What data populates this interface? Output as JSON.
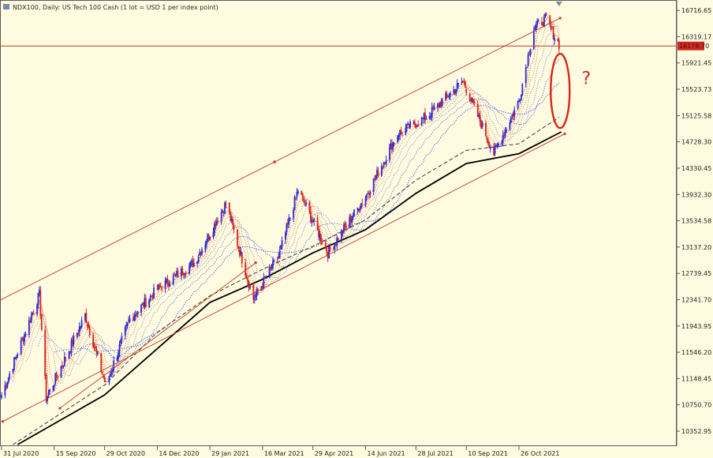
{
  "window": {
    "title": "NDX100, Daily: US Tech 100 Cash (1 lot = USD 1 per index point)",
    "annotation_text": "?"
  },
  "colors": {
    "background": "#fefbe0",
    "bull_candle": "#2b2bd9",
    "bear_candle": "#d9261c",
    "horizontal_line": "#c0392b",
    "price_tag": "#d9261c",
    "channel": "#c0392b",
    "ma_long": "#000000",
    "annotation": "#d9261c"
  },
  "chart_data": {
    "type": "candlestick",
    "symbol": "NDX100",
    "timeframe": "Daily",
    "x_tick_labels": [
      "31 Jul 2020",
      "15 Sep 2020",
      "29 Oct 2020",
      "14 Dec 2020",
      "29 Jan 2021",
      "16 Mar 2021",
      "29 Apr 2021",
      "14 Jun 2021",
      "28 Jul 2021",
      "10 Sep 2021",
      "26 Oct 2021"
    ],
    "x_tick_dates": [
      "2020-07-31",
      "2020-09-15",
      "2020-10-29",
      "2020-12-14",
      "2021-01-29",
      "2021-03-16",
      "2021-04-29",
      "2021-06-14",
      "2021-07-28",
      "2021-09-10",
      "2021-10-26"
    ],
    "y_tick_labels": [
      "16716.65",
      "16319.17",
      "15921.45",
      "15523.73",
      "15125.58",
      "14728.30",
      "14330.45",
      "13932.30",
      "13534.58",
      "13137.20",
      "12739.45",
      "12341.70",
      "11943.95",
      "11546.20",
      "11148.45",
      "10750.70",
      "10352.95"
    ],
    "y_range": [
      10150,
      16850
    ],
    "current_price_label": "16178.70",
    "current_price": 16178.7,
    "key_closes": [
      {
        "date": "2020-07-31",
        "close": 10900
      },
      {
        "date": "2020-09-02",
        "close": 12420
      },
      {
        "date": "2020-09-08",
        "close": 10850
      },
      {
        "date": "2020-10-12",
        "close": 12100
      },
      {
        "date": "2020-10-30",
        "close": 11050
      },
      {
        "date": "2020-11-20",
        "close": 12050
      },
      {
        "date": "2020-12-14",
        "close": 12500
      },
      {
        "date": "2021-01-15",
        "close": 12900
      },
      {
        "date": "2021-02-12",
        "close": 13800
      },
      {
        "date": "2021-03-08",
        "close": 12350
      },
      {
        "date": "2021-03-30",
        "close": 13000
      },
      {
        "date": "2021-04-16",
        "close": 14000
      },
      {
        "date": "2021-05-12",
        "close": 13050
      },
      {
        "date": "2021-06-14",
        "close": 13900
      },
      {
        "date": "2021-07-12",
        "close": 14850
      },
      {
        "date": "2021-08-06",
        "close": 15100
      },
      {
        "date": "2021-09-07",
        "close": 15650
      },
      {
        "date": "2021-10-04",
        "close": 14550
      },
      {
        "date": "2021-10-26",
        "close": 15350
      },
      {
        "date": "2021-11-08",
        "close": 16450
      },
      {
        "date": "2021-11-19",
        "close": 16600
      },
      {
        "date": "2021-11-23",
        "close": 16420
      },
      {
        "date": "2021-11-30",
        "close": 16200
      }
    ],
    "ma_long_points": [
      {
        "date": "2020-08-14",
        "value": 10150
      },
      {
        "date": "2020-10-29",
        "value": 10900
      },
      {
        "date": "2020-12-14",
        "value": 11600
      },
      {
        "date": "2021-01-29",
        "value": 12300
      },
      {
        "date": "2021-03-16",
        "value": 12650
      },
      {
        "date": "2021-04-29",
        "value": 13050
      },
      {
        "date": "2021-06-14",
        "value": 13400
      },
      {
        "date": "2021-07-28",
        "value": 13950
      },
      {
        "date": "2021-09-10",
        "value": 14400
      },
      {
        "date": "2021-10-26",
        "value": 14550
      },
      {
        "date": "2021-12-02",
        "value": 14880
      }
    ],
    "ma_mid_points": [
      {
        "date": "2020-08-10",
        "value": 10150
      },
      {
        "date": "2020-10-29",
        "value": 11050
      },
      {
        "date": "2020-12-14",
        "value": 11850
      },
      {
        "date": "2021-01-29",
        "value": 12400
      },
      {
        "date": "2021-03-16",
        "value": 12800
      },
      {
        "date": "2021-04-29",
        "value": 13150
      },
      {
        "date": "2021-06-14",
        "value": 13550
      },
      {
        "date": "2021-07-28",
        "value": 14150
      },
      {
        "date": "2021-09-10",
        "value": 14600
      },
      {
        "date": "2021-10-26",
        "value": 14700
      },
      {
        "date": "2021-11-30",
        "value": 15100
      }
    ],
    "channel_upper": [
      {
        "date": "2020-07-20",
        "value": 12250
      },
      {
        "date": "2021-12-01",
        "value": 16600
      }
    ],
    "channel_lower_a": [
      {
        "date": "2020-08-01",
        "value": 10500
      },
      {
        "date": "2021-12-05",
        "value": 14850
      }
    ],
    "channel_lower_b": [
      {
        "date": "2020-09-20",
        "value": 10700
      },
      {
        "date": "2021-03-10",
        "value": 12900
      }
    ],
    "annotation_ellipse": {
      "date": "2021-12-01",
      "value": 15500
    },
    "question_mark": {
      "date": "2021-12-06",
      "value": 15600
    }
  }
}
